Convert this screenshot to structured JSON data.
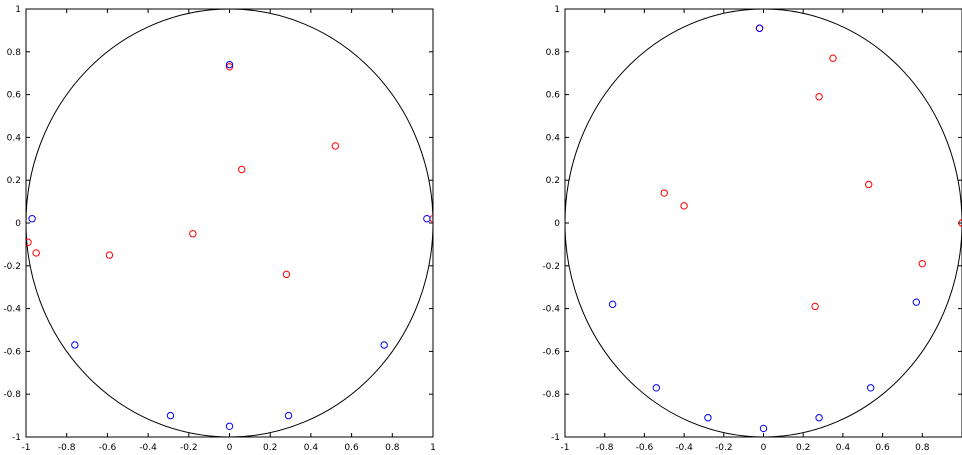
{
  "colors": {
    "red_series": "#ff0000",
    "blue_series": "#0000ff",
    "axes": "#000000",
    "background": "#ffffff"
  },
  "chart_data": [
    {
      "type": "scatter",
      "title": "",
      "xlabel": "",
      "ylabel": "",
      "xlim": [
        -1,
        1
      ],
      "ylim": [
        -1,
        1
      ],
      "grid": false,
      "unit_circle": true,
      "x_ticks": [
        -1,
        -0.8,
        -0.6,
        -0.4,
        -0.2,
        0,
        0.2,
        0.4,
        0.6,
        0.8,
        1
      ],
      "x_tick_labels": [
        "-1",
        "-0.8",
        "-0.6",
        "-0.4",
        "-0.2",
        "0",
        "0.2",
        "0.4",
        "0.6",
        "0.8",
        "1"
      ],
      "y_ticks": [
        1,
        0.8,
        0.6,
        0.4,
        0.2,
        0,
        -0.2,
        -0.4,
        -0.6,
        -0.8,
        -1
      ],
      "y_tick_labels": [
        "1",
        "0.8",
        "0.6",
        "0.4",
        "0.2",
        "0",
        "-0.2",
        "-0.4",
        "-0.6",
        "-0.8",
        "-1"
      ],
      "series": [
        {
          "color": "#ff0000",
          "marker": "circle",
          "points": [
            [
              0.0,
              0.73
            ],
            [
              0.52,
              0.36
            ],
            [
              0.06,
              0.25
            ],
            [
              -0.18,
              -0.05
            ],
            [
              -0.59,
              -0.15
            ],
            [
              -0.95,
              -0.14
            ],
            [
              -0.99,
              -0.09
            ],
            [
              0.28,
              -0.24
            ],
            [
              1.0,
              0.02
            ]
          ]
        },
        {
          "color": "#0000ff",
          "marker": "circle",
          "points": [
            [
              0.0,
              0.74
            ],
            [
              -0.97,
              0.02
            ],
            [
              0.97,
              0.02
            ],
            [
              -0.76,
              -0.57
            ],
            [
              0.76,
              -0.57
            ],
            [
              -0.29,
              -0.9
            ],
            [
              0.29,
              -0.9
            ],
            [
              0.0,
              -0.95
            ]
          ]
        }
      ]
    },
    {
      "type": "scatter",
      "title": "",
      "xlabel": "",
      "ylabel": "",
      "xlim": [
        -1,
        1
      ],
      "ylim": [
        -1,
        1
      ],
      "grid": false,
      "unit_circle": true,
      "x_ticks": [
        -1,
        -0.8,
        -0.6,
        -0.4,
        -0.2,
        0,
        0.2,
        0.4,
        0.6,
        0.8
      ],
      "x_tick_labels": [
        "-1",
        "-0.8",
        "-0.6",
        "-0.4",
        "-0.2",
        "0",
        "0.2",
        "0.4",
        "0.6",
        "0.8"
      ],
      "y_ticks": [
        1,
        0.8,
        0.6,
        0.4,
        0.2,
        0,
        -0.2,
        -0.4,
        -0.6,
        -0.8,
        -1
      ],
      "y_tick_labels": [
        "1",
        "0.8",
        "0.6",
        "0.4",
        "0.2",
        "0",
        "-0.2",
        "-0.4",
        "-0.6",
        "-0.8",
        "-1"
      ],
      "series": [
        {
          "color": "#ff0000",
          "marker": "circle",
          "points": [
            [
              -0.02,
              0.91
            ],
            [
              0.35,
              0.77
            ],
            [
              0.28,
              0.59
            ],
            [
              0.53,
              0.18
            ],
            [
              -0.5,
              0.14
            ],
            [
              -0.4,
              0.08
            ],
            [
              1.0,
              0.0
            ],
            [
              0.8,
              -0.19
            ],
            [
              0.26,
              -0.39
            ]
          ]
        },
        {
          "color": "#0000ff",
          "marker": "circle",
          "points": [
            [
              -0.02,
              0.91
            ],
            [
              -0.76,
              -0.38
            ],
            [
              0.77,
              -0.37
            ],
            [
              -0.54,
              -0.77
            ],
            [
              0.54,
              -0.77
            ],
            [
              -0.28,
              -0.91
            ],
            [
              0.28,
              -0.91
            ],
            [
              0.0,
              -0.96
            ]
          ]
        }
      ]
    }
  ]
}
